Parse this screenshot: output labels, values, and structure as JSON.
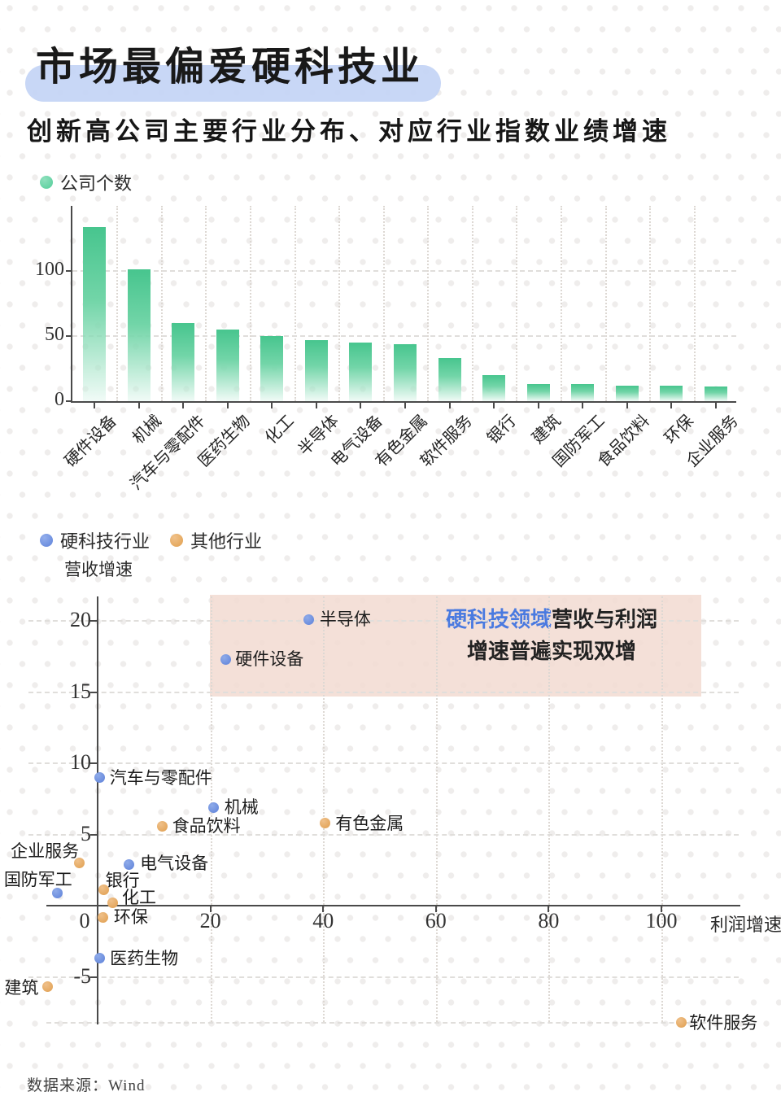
{
  "header": {
    "title": "市场最偏爱硬科技业",
    "subtitle": "创新高公司主要行业分布、对应行业指数业绩增速"
  },
  "source": "数据来源：Wind",
  "colors": {
    "bar_green_top": "#47c58e",
    "bar_green_bottom": "#e0f6ed",
    "tech_blue": "#5d81d9",
    "other_orange": "#e09e4e",
    "title_highlight": "#c3d4f5",
    "annotation_bg": "#f2dcd3",
    "annotation_highlight_text": "#4a7ae0"
  },
  "chart_data": [
    {
      "type": "bar",
      "legend": [
        "公司个数"
      ],
      "legend_position": "top-left",
      "grid": true,
      "ylim": [
        0,
        145
      ],
      "yticks": [
        0,
        50,
        100
      ],
      "categories": [
        "硬件设备",
        "机械",
        "汽车与零配件",
        "医药生物",
        "化工",
        "半导体",
        "电气设备",
        "有色金属",
        "软件服务",
        "银行",
        "建筑",
        "国防军工",
        "食品饮料",
        "环保",
        "企业服务"
      ],
      "values": [
        134,
        101,
        60,
        55,
        50,
        47,
        45,
        44,
        33,
        20,
        13,
        13,
        12,
        12,
        11
      ]
    },
    {
      "type": "scatter",
      "xlabel": "利润增速",
      "ylabel": "营收增速",
      "xlim": [
        -9,
        114
      ],
      "ylim": [
        -8.3,
        21.7
      ],
      "xticks": [
        0,
        20,
        40,
        60,
        80,
        100
      ],
      "yticks": [
        20,
        15,
        10,
        5,
        -5
      ],
      "grid": true,
      "legend_position": "top-left",
      "annotation": {
        "highlight": "硬科技领域",
        "line1": "营收与利润",
        "line2": "增速普遍实现双增"
      },
      "series": [
        {
          "name": "硬科技行业",
          "key": "tech",
          "color": "#5d81d9",
          "points": [
            {
              "name": "半导体",
              "x": 37.5,
              "y": 20.1,
              "label_anchor": "start",
              "label_dx": 13,
              "label_dy": 0
            },
            {
              "name": "硬件设备",
              "x": 22.7,
              "y": 17.3,
              "label_anchor": "start",
              "label_dx": 12,
              "label_dy": 0
            },
            {
              "name": "汽车与零配件",
              "x": 0.4,
              "y": 9.0,
              "label_anchor": "start",
              "label_dx": 12,
              "label_dy": 0
            },
            {
              "name": "机械",
              "x": 20.6,
              "y": 6.9,
              "label_anchor": "start",
              "label_dx": 13,
              "label_dy": 0
            },
            {
              "name": "电气设备",
              "x": 5.5,
              "y": 2.9,
              "label_anchor": "start",
              "label_dx": 14,
              "label_dy": -1
            },
            {
              "name": "国防军工",
              "x": -7.1,
              "y": 0.9,
              "label_anchor": "end",
              "label_dx": 18,
              "label_dy": -16
            },
            {
              "name": "医药生物",
              "x": 0.3,
              "y": -3.7,
              "label_anchor": "start",
              "label_dx": 13,
              "label_dy": 0
            }
          ]
        },
        {
          "name": "其他行业",
          "key": "other",
          "color": "#e09e4e",
          "points": [
            {
              "name": "食品饮料",
              "x": 11.5,
              "y": 5.6,
              "label_anchor": "start",
              "label_dx": 12,
              "label_dy": 0
            },
            {
              "name": "有色金属",
              "x": 40.3,
              "y": 5.8,
              "label_anchor": "start",
              "label_dx": 13,
              "label_dy": 0
            },
            {
              "name": "企业服务",
              "x": -3.3,
              "y": 3.0,
              "label_anchor": "end",
              "label_dx": 0,
              "label_dy": -15
            },
            {
              "name": "银行",
              "x": 1.1,
              "y": 1.1,
              "label_anchor": "start",
              "label_dx": 2,
              "label_dy": -12
            },
            {
              "name": "化工",
              "x": 2.6,
              "y": 0.2,
              "label_anchor": "start",
              "label_dx": 12,
              "label_dy": -7
            },
            {
              "name": "环保",
              "x": 1.0,
              "y": -0.8,
              "label_anchor": "start",
              "label_dx": 13,
              "label_dy": 0
            },
            {
              "name": "建筑",
              "x": -8.9,
              "y": -5.7,
              "label_anchor": "end",
              "label_dx": -11,
              "label_dy": 1
            },
            {
              "name": "软件服务",
              "x": 103.5,
              "y": -8.2,
              "label_anchor": "start",
              "label_dx": 10,
              "label_dy": 0
            }
          ]
        }
      ]
    }
  ]
}
